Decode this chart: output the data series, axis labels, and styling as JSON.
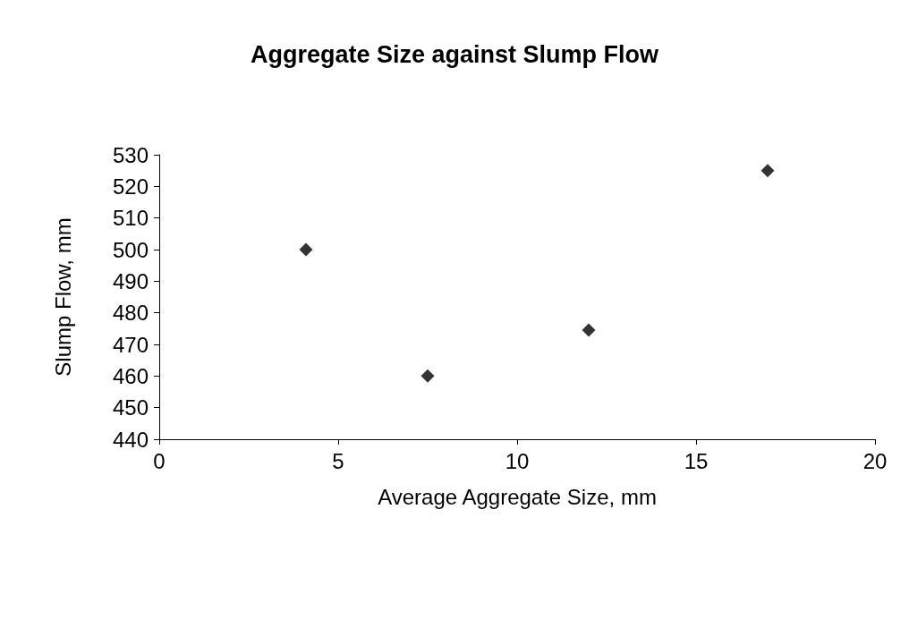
{
  "chart_data": {
    "type": "scatter",
    "title": "Aggregate Size against Slump Flow",
    "xlabel": "Average Aggregate Size, mm",
    "ylabel": "Slump Flow, mm",
    "x": [
      4.1,
      7.5,
      12,
      17
    ],
    "series": [
      {
        "color": "#000000",
        "values": [
          500,
          460,
          474.5,
          525
        ]
      }
    ],
    "xlim": [
      0,
      20
    ],
    "xticks": [
      0,
      5,
      10,
      15,
      20
    ],
    "ylim": [
      440,
      530
    ],
    "yticks": [
      440,
      450,
      460,
      470,
      480,
      490,
      500,
      510,
      520,
      530
    ],
    "marker": "diamond",
    "grid": false
  }
}
